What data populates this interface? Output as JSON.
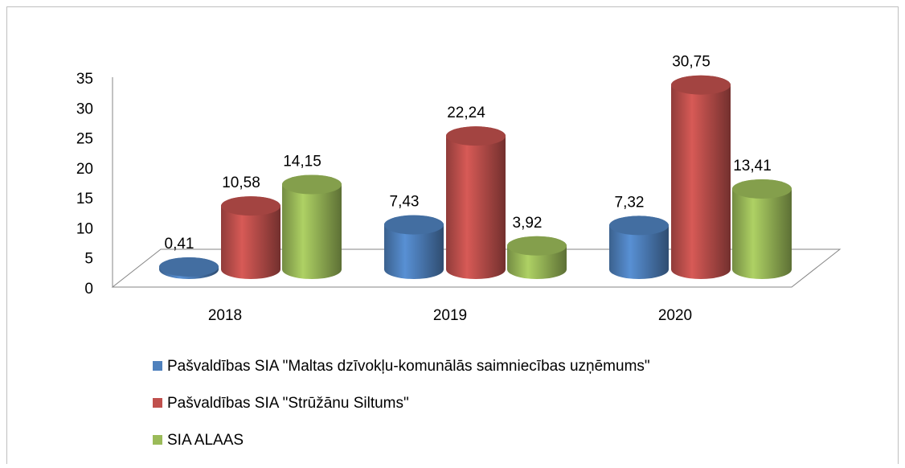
{
  "chart_data": {
    "type": "bar3d",
    "categories": [
      "2018",
      "2019",
      "2020"
    ],
    "series": [
      {
        "name": "Pašvaldības SIA \"Maltas dzīvokļu-komunālās saimniecības uzņēmums\"",
        "color": "#4f81bd",
        "values": [
          0.41,
          7.43,
          7.32
        ],
        "value_labels": [
          "0,41",
          "7,43",
          "7,32"
        ]
      },
      {
        "name": "Pašvaldības SIA \"Strūžānu Siltums\"",
        "color": "#c0504d",
        "values": [
          10.58,
          22.24,
          30.75
        ],
        "value_labels": [
          "10,58",
          "22,24",
          "30,75"
        ]
      },
      {
        "name": "SIA ALAAS",
        "color": "#9bbb59",
        "values": [
          14.15,
          3.92,
          13.41
        ],
        "value_labels": [
          "14,15",
          "3,92",
          "13,41"
        ]
      }
    ],
    "ylim": [
      0,
      35
    ],
    "yticks": [
      0,
      5,
      10,
      15,
      20,
      25,
      30,
      35
    ],
    "grid": false,
    "legend": "bottom"
  }
}
